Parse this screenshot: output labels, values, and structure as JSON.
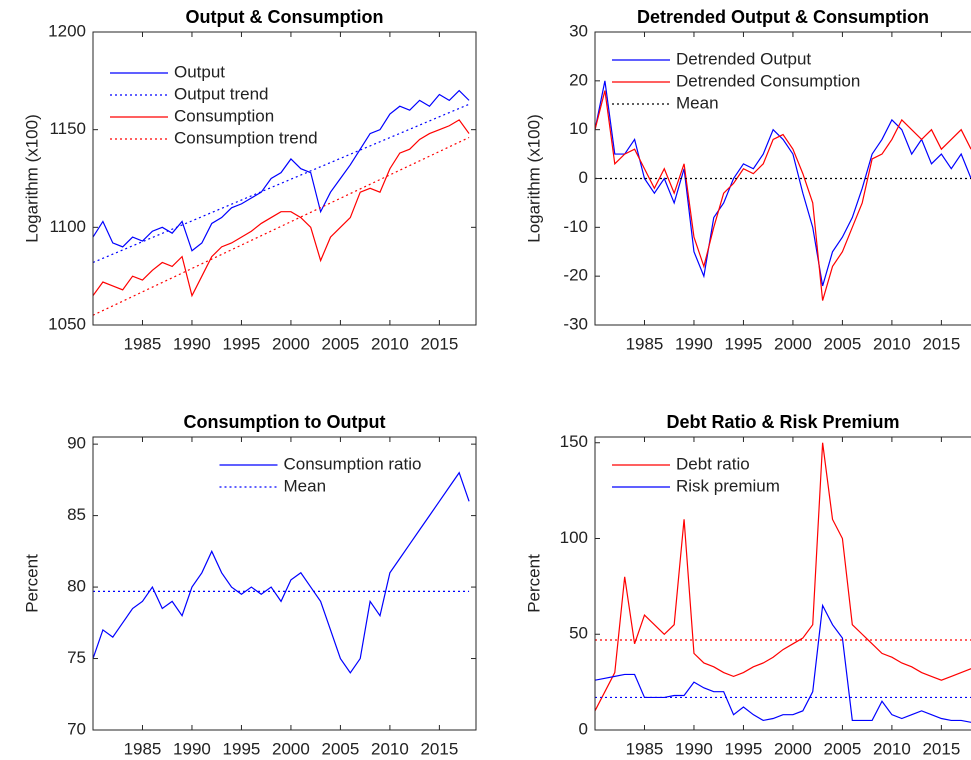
{
  "chart_data": [
    {
      "type": "line",
      "title": "Output & Consumption",
      "ylabel": "Logarithm (x100)",
      "legend": "northwest",
      "xlim": [
        1980,
        2018.7
      ],
      "xticks": [
        1985,
        1990,
        1995,
        2000,
        2005,
        2010,
        2015
      ],
      "ylim": [
        1050,
        1200
      ],
      "yticks": [
        1050,
        1100,
        1150,
        1200
      ],
      "series": [
        {
          "name": "Output",
          "color": "#0000ff",
          "style": "solid",
          "x": [
            1980,
            1981,
            1982,
            1983,
            1984,
            1985,
            1986,
            1987,
            1988,
            1989,
            1990,
            1991,
            1992,
            1993,
            1994,
            1995,
            1996,
            1997,
            1998,
            1999,
            2000,
            2001,
            2002,
            2003,
            2004,
            2005,
            2006,
            2007,
            2008,
            2009,
            2010,
            2011,
            2012,
            2013,
            2014,
            2015,
            2016,
            2017,
            2018
          ],
          "values": [
            1095,
            1103,
            1092,
            1090,
            1095,
            1093,
            1098,
            1100,
            1097,
            1103,
            1088,
            1092,
            1102,
            1105,
            1110,
            1112,
            1115,
            1118,
            1125,
            1128,
            1135,
            1130,
            1128,
            1108,
            1118,
            1125,
            1132,
            1140,
            1148,
            1150,
            1158,
            1162,
            1160,
            1165,
            1162,
            1168,
            1165,
            1170,
            1165
          ]
        },
        {
          "name": "Output trend",
          "color": "#0000ff",
          "style": "dotted",
          "x": [
            1980,
            2018
          ],
          "values": [
            1082,
            1163
          ]
        },
        {
          "name": "Consumption",
          "color": "#ff0000",
          "style": "solid",
          "x": [
            1980,
            1981,
            1982,
            1983,
            1984,
            1985,
            1986,
            1987,
            1988,
            1989,
            1990,
            1991,
            1992,
            1993,
            1994,
            1995,
            1996,
            1997,
            1998,
            1999,
            2000,
            2001,
            2002,
            2003,
            2004,
            2005,
            2006,
            2007,
            2008,
            2009,
            2010,
            2011,
            2012,
            2013,
            2014,
            2015,
            2016,
            2017,
            2018
          ],
          "values": [
            1065,
            1072,
            1070,
            1068,
            1075,
            1073,
            1078,
            1082,
            1080,
            1085,
            1065,
            1075,
            1085,
            1090,
            1092,
            1095,
            1098,
            1102,
            1105,
            1108,
            1108,
            1105,
            1100,
            1083,
            1095,
            1100,
            1105,
            1118,
            1120,
            1118,
            1130,
            1138,
            1140,
            1145,
            1148,
            1150,
            1152,
            1155,
            1148
          ]
        },
        {
          "name": "Consumption trend",
          "color": "#ff0000",
          "style": "dotted",
          "x": [
            1980,
            2018
          ],
          "values": [
            1055,
            1146
          ]
        }
      ]
    },
    {
      "type": "line",
      "title": "Detrended Output & Consumption",
      "ylabel": "Logarithm (x100)",
      "legend": "northwest",
      "xlim": [
        1980,
        2018.7
      ],
      "xticks": [
        1985,
        1990,
        1995,
        2000,
        2005,
        2010,
        2015
      ],
      "ylim": [
        -30,
        30
      ],
      "yticks": [
        -30,
        -20,
        -10,
        0,
        10,
        20,
        30
      ],
      "series": [
        {
          "name": "Detrended Output",
          "color": "#0000ff",
          "style": "solid",
          "x": [
            1980,
            1981,
            1982,
            1983,
            1984,
            1985,
            1986,
            1987,
            1988,
            1989,
            1990,
            1991,
            1992,
            1993,
            1994,
            1995,
            1996,
            1997,
            1998,
            1999,
            2000,
            2001,
            2002,
            2003,
            2004,
            2005,
            2006,
            2007,
            2008,
            2009,
            2010,
            2011,
            2012,
            2013,
            2014,
            2015,
            2016,
            2017,
            2018
          ],
          "values": [
            10,
            20,
            5,
            5,
            8,
            0,
            -3,
            0,
            -5,
            2,
            -15,
            -20,
            -8,
            -5,
            0,
            3,
            2,
            5,
            10,
            8,
            5,
            -3,
            -10,
            -22,
            -15,
            -12,
            -8,
            -2,
            5,
            8,
            12,
            10,
            5,
            8,
            3,
            5,
            2,
            5,
            0
          ]
        },
        {
          "name": "Detrended Consumption",
          "color": "#ff0000",
          "style": "solid",
          "x": [
            1980,
            1981,
            1982,
            1983,
            1984,
            1985,
            1986,
            1987,
            1988,
            1989,
            1990,
            1991,
            1992,
            1993,
            1994,
            1995,
            1996,
            1997,
            1998,
            1999,
            2000,
            2001,
            2002,
            2003,
            2004,
            2005,
            2006,
            2007,
            2008,
            2009,
            2010,
            2011,
            2012,
            2013,
            2014,
            2015,
            2016,
            2017,
            2018
          ],
          "values": [
            10,
            18,
            3,
            5,
            6,
            2,
            -2,
            2,
            -3,
            3,
            -12,
            -18,
            -10,
            -3,
            -1,
            2,
            1,
            3,
            8,
            9,
            6,
            1,
            -5,
            -25,
            -18,
            -15,
            -10,
            -5,
            4,
            5,
            8,
            12,
            10,
            8,
            10,
            6,
            8,
            10,
            6
          ]
        },
        {
          "name": "Mean",
          "color": "#000000",
          "style": "dotted",
          "x": [
            1980,
            2018
          ],
          "values": [
            0,
            0
          ]
        }
      ]
    },
    {
      "type": "line",
      "title": "Consumption to Output",
      "ylabel": "Percent",
      "legend": "north",
      "xlim": [
        1980,
        2018.7
      ],
      "xticks": [
        1985,
        1990,
        1995,
        2000,
        2005,
        2010,
        2015
      ],
      "ylim": [
        70,
        90.5
      ],
      "yticks": [
        70,
        75,
        80,
        85,
        90
      ],
      "series": [
        {
          "name": "Consumption ratio",
          "color": "#0000ff",
          "style": "solid",
          "x": [
            1980,
            1981,
            1982,
            1983,
            1984,
            1985,
            1986,
            1987,
            1988,
            1989,
            1990,
            1991,
            1992,
            1993,
            1994,
            1995,
            1996,
            1997,
            1998,
            1999,
            2000,
            2001,
            2002,
            2003,
            2004,
            2005,
            2006,
            2007,
            2008,
            2009,
            2010,
            2011,
            2012,
            2013,
            2014,
            2015,
            2016,
            2017,
            2018
          ],
          "values": [
            75,
            77,
            76.5,
            77.5,
            78.5,
            79,
            80,
            78.5,
            79,
            78,
            80,
            81,
            82.5,
            81,
            80,
            79.5,
            80,
            79.5,
            80,
            79,
            80.5,
            81,
            80,
            79,
            77,
            75,
            74,
            75,
            79,
            78,
            81,
            82,
            83,
            84,
            85,
            86,
            87,
            88,
            86
          ]
        },
        {
          "name": "Mean",
          "color": "#0000ff",
          "style": "dotted",
          "x": [
            1980,
            2018
          ],
          "values": [
            79.7,
            79.7
          ]
        }
      ]
    },
    {
      "type": "line",
      "title": "Debt Ratio & Risk Premium",
      "ylabel": "Percent",
      "legend": "northwest",
      "xlim": [
        1980,
        2018.7
      ],
      "xticks": [
        1985,
        1990,
        1995,
        2000,
        2005,
        2010,
        2015
      ],
      "ylim": [
        0,
        153
      ],
      "yticks": [
        0,
        50,
        100,
        150
      ],
      "series": [
        {
          "name": "Debt ratio",
          "color": "#ff0000",
          "style": "solid",
          "x": [
            1980,
            1981,
            1982,
            1983,
            1984,
            1985,
            1986,
            1987,
            1988,
            1989,
            1990,
            1991,
            1992,
            1993,
            1994,
            1995,
            1996,
            1997,
            1998,
            1999,
            2000,
            2001,
            2002,
            2003,
            2004,
            2005,
            2006,
            2007,
            2008,
            2009,
            2010,
            2011,
            2012,
            2013,
            2014,
            2015,
            2016,
            2017,
            2018
          ],
          "values": [
            10,
            20,
            30,
            80,
            45,
            60,
            55,
            50,
            55,
            110,
            40,
            35,
            33,
            30,
            28,
            30,
            33,
            35,
            38,
            42,
            45,
            48,
            55,
            150,
            110,
            100,
            55,
            50,
            45,
            40,
            38,
            35,
            33,
            30,
            28,
            26,
            28,
            30,
            32
          ]
        },
        {
          "name": "Risk premium",
          "color": "#0000ff",
          "style": "solid",
          "x": [
            1980,
            1981,
            1982,
            1983,
            1984,
            1985,
            1986,
            1987,
            1988,
            1989,
            1990,
            1991,
            1992,
            1993,
            1994,
            1995,
            1996,
            1997,
            1998,
            1999,
            2000,
            2001,
            2002,
            2003,
            2004,
            2005,
            2006,
            2007,
            2008,
            2009,
            2010,
            2011,
            2012,
            2013,
            2014,
            2015,
            2016,
            2017,
            2018
          ],
          "values": [
            26,
            27,
            28,
            29,
            29,
            17,
            17,
            17,
            18,
            18,
            25,
            22,
            20,
            20,
            8,
            12,
            8,
            5,
            6,
            8,
            8,
            10,
            20,
            65,
            55,
            48,
            5,
            5,
            5,
            15,
            8,
            6,
            8,
            10,
            8,
            6,
            5,
            5,
            4
          ]
        },
        {
          "name": null,
          "color": "#ff0000",
          "style": "dotted",
          "x": [
            1980,
            2018
          ],
          "values": [
            47,
            47
          ]
        },
        {
          "name": null,
          "color": "#0000ff",
          "style": "dotted",
          "x": [
            1980,
            2018
          ],
          "values": [
            17,
            17
          ]
        }
      ]
    }
  ]
}
